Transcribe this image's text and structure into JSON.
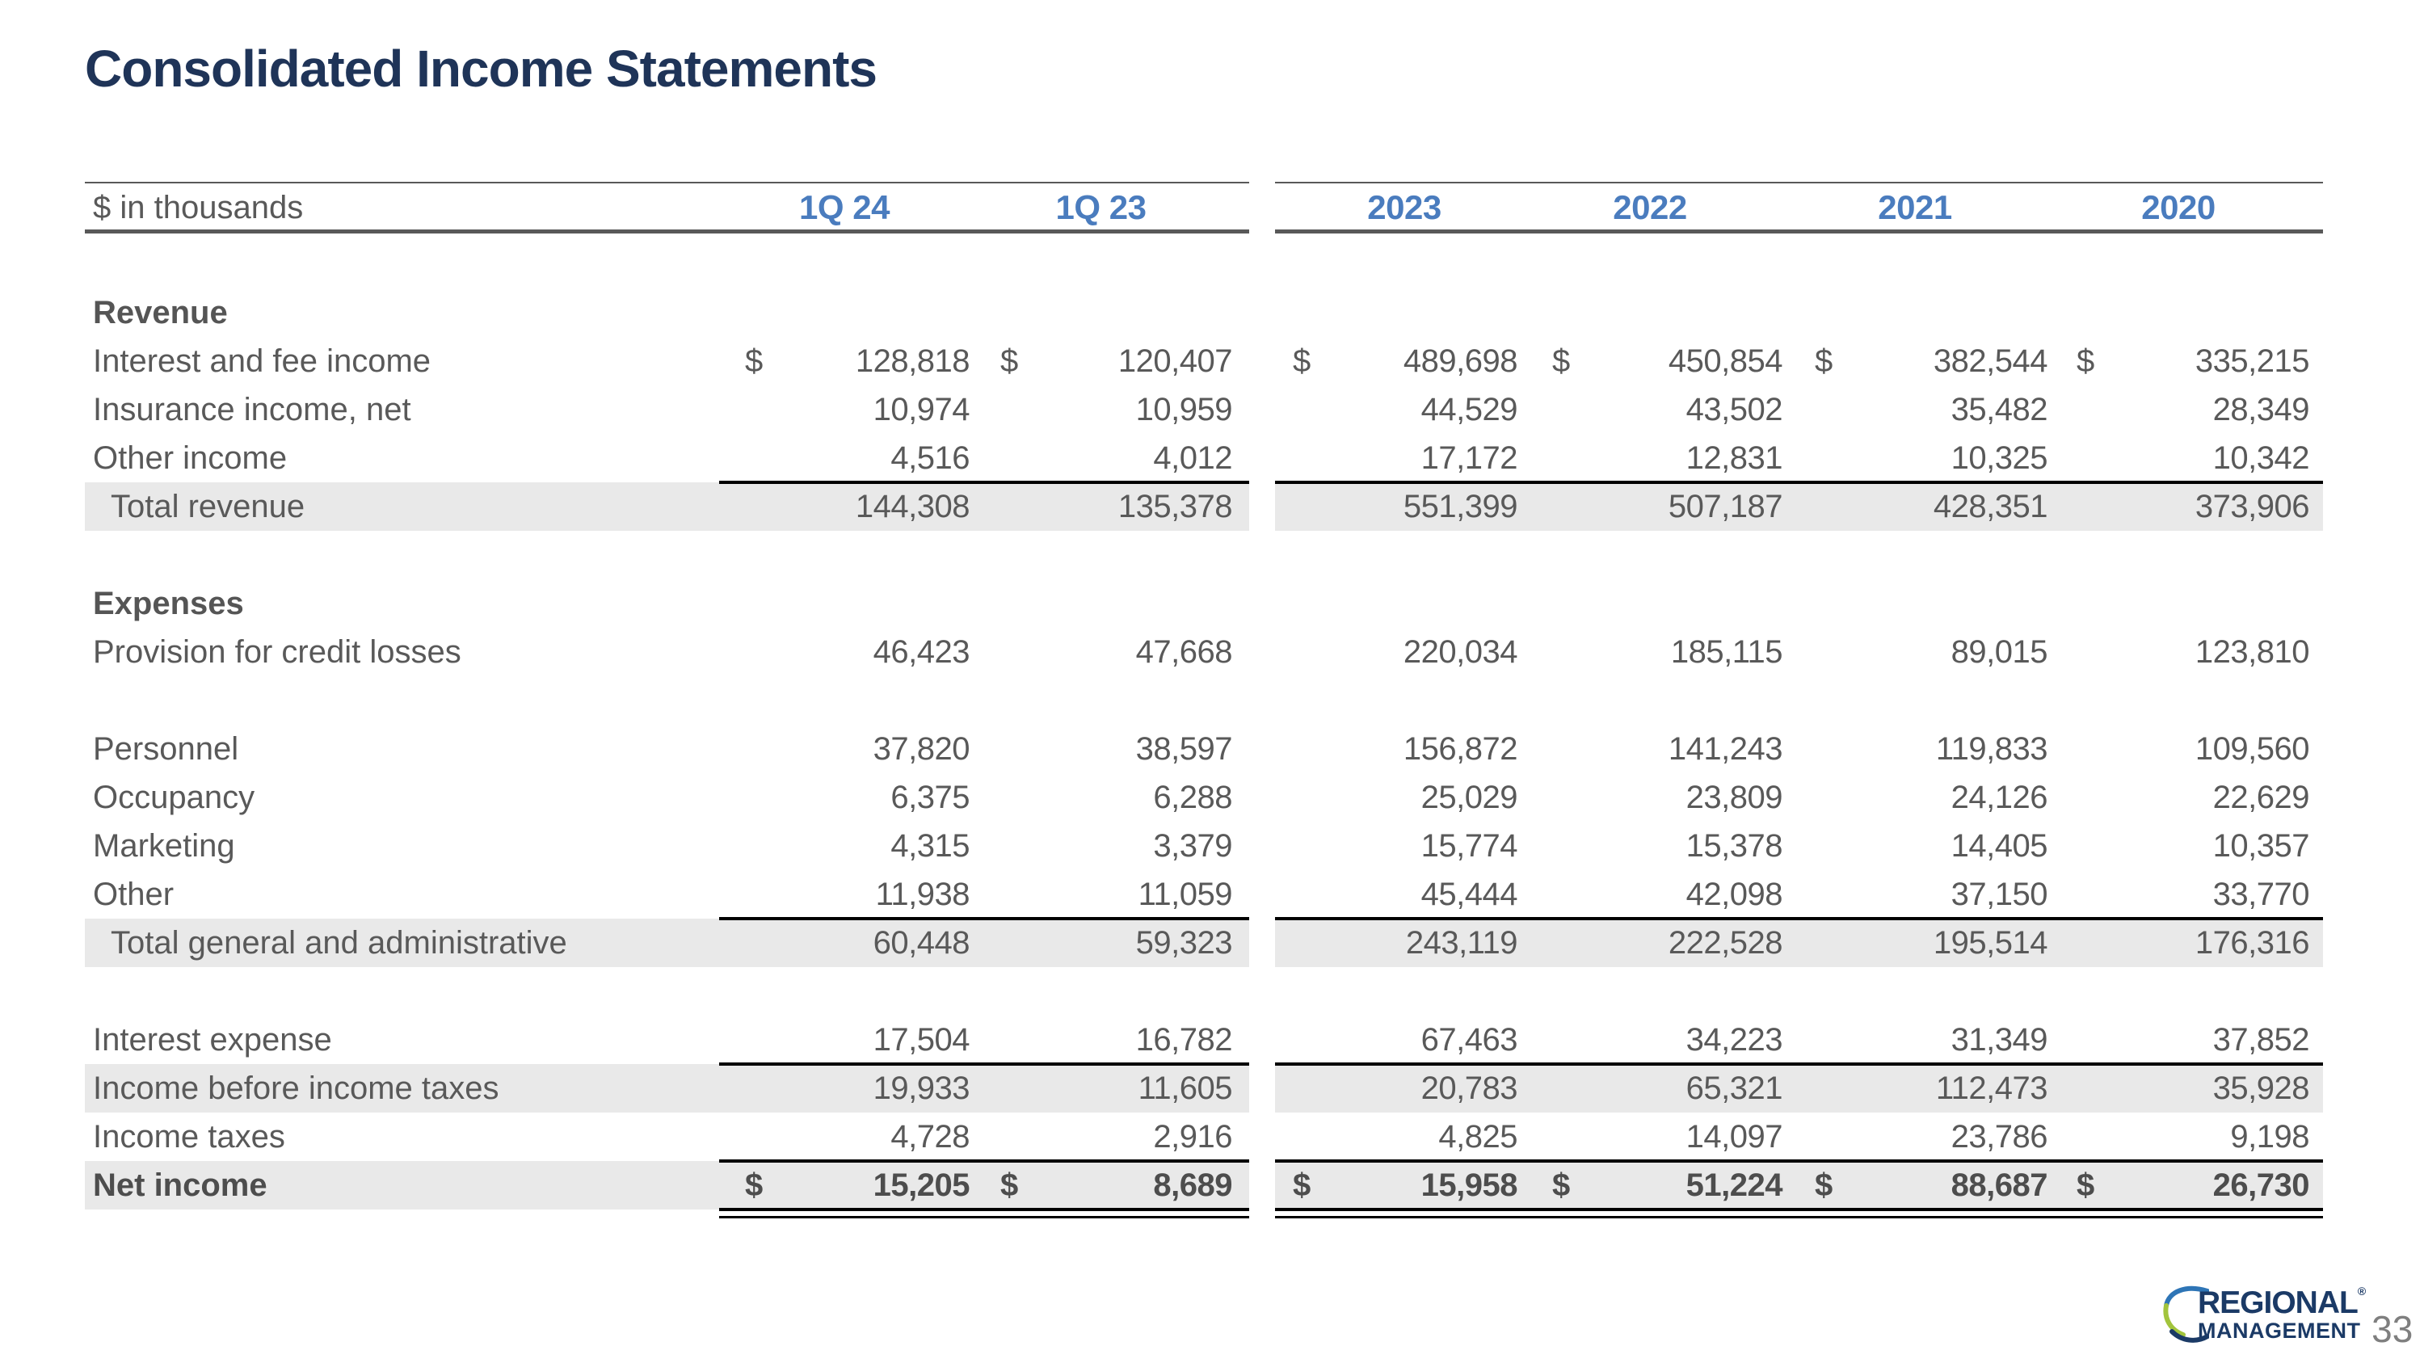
{
  "title": "Consolidated Income Statements",
  "page_number": "33",
  "logo": {
    "name_top": "REGIONAL",
    "reg_mark": "®",
    "name_bottom": "MANAGEMENT"
  },
  "colors": {
    "title_navy": "#1F3458",
    "header_blue": "#4A7CBE",
    "body_gray": "#595959",
    "row_shade": "#E9E9E9",
    "rule_dark_gray": "#595959",
    "rule_black": "#000000",
    "logo_navy": "#1B3A66",
    "logo_blue": "#2E75B6",
    "logo_green": "#A2C43C"
  },
  "table": {
    "unit_label": "$ in thousands",
    "columns": [
      "1Q 24",
      "1Q 23",
      "2023",
      "2022",
      "2021",
      "2020"
    ],
    "rows": [
      {
        "type": "section",
        "label": "Revenue"
      },
      {
        "type": "data",
        "label": "Interest and fee income",
        "dollar": true,
        "values": [
          "128,818",
          "120,407",
          "489,698",
          "450,854",
          "382,544",
          "335,215"
        ]
      },
      {
        "type": "data",
        "label": "Insurance income, net",
        "values": [
          "10,974",
          "10,959",
          "44,529",
          "43,502",
          "35,482",
          "28,349"
        ]
      },
      {
        "type": "data",
        "label": "Other income",
        "values": [
          "4,516",
          "4,012",
          "17,172",
          "12,831",
          "10,325",
          "10,342"
        ]
      },
      {
        "type": "total",
        "label": "Total revenue",
        "shaded": true,
        "rule_above": true,
        "values": [
          "144,308",
          "135,378",
          "551,399",
          "507,187",
          "428,351",
          "373,906"
        ]
      },
      {
        "type": "blank"
      },
      {
        "type": "section",
        "label": "Expenses"
      },
      {
        "type": "data",
        "label": "Provision for credit losses",
        "values": [
          "46,423",
          "47,668",
          "220,034",
          "185,115",
          "89,015",
          "123,810"
        ]
      },
      {
        "type": "blank"
      },
      {
        "type": "data",
        "label": "Personnel",
        "values": [
          "37,820",
          "38,597",
          "156,872",
          "141,243",
          "119,833",
          "109,560"
        ]
      },
      {
        "type": "data",
        "label": "Occupancy",
        "values": [
          "6,375",
          "6,288",
          "25,029",
          "23,809",
          "24,126",
          "22,629"
        ]
      },
      {
        "type": "data",
        "label": "Marketing",
        "values": [
          "4,315",
          "3,379",
          "15,774",
          "15,378",
          "14,405",
          "10,357"
        ]
      },
      {
        "type": "data",
        "label": "Other",
        "values": [
          "11,938",
          "11,059",
          "45,444",
          "42,098",
          "37,150",
          "33,770"
        ]
      },
      {
        "type": "total",
        "label": "Total general and administrative",
        "shaded": true,
        "rule_above": true,
        "values": [
          "60,448",
          "59,323",
          "243,119",
          "222,528",
          "195,514",
          "176,316"
        ]
      },
      {
        "type": "blank"
      },
      {
        "type": "data",
        "label": "Interest expense",
        "values": [
          "17,504",
          "16,782",
          "67,463",
          "34,223",
          "31,349",
          "37,852"
        ]
      },
      {
        "type": "data",
        "label": "Income before income taxes",
        "shaded": true,
        "rule_above": true,
        "values": [
          "19,933",
          "11,605",
          "20,783",
          "65,321",
          "112,473",
          "35,928"
        ]
      },
      {
        "type": "data",
        "label": "Income taxes",
        "values": [
          "4,728",
          "2,916",
          "4,825",
          "14,097",
          "23,786",
          "9,198"
        ]
      },
      {
        "type": "net",
        "label": "Net income",
        "dollar": true,
        "shaded": true,
        "rule_above": true,
        "double_rule_below": true,
        "values": [
          "15,205",
          "8,689",
          "15,958",
          "51,224",
          "88,687",
          "26,730"
        ]
      }
    ]
  }
}
